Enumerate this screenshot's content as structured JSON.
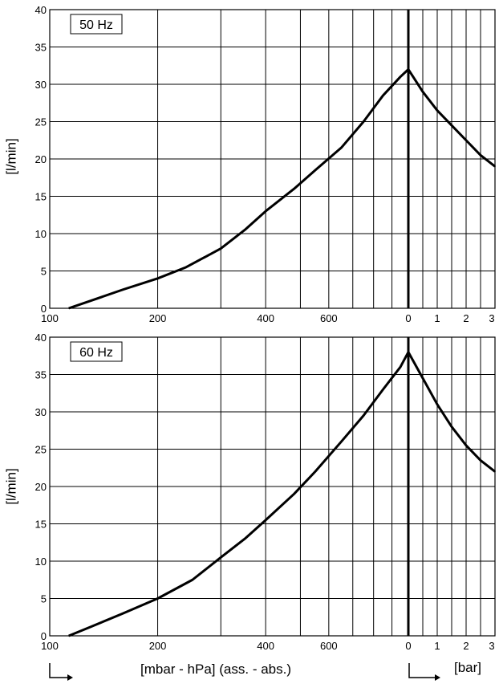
{
  "chart_data": [
    {
      "type": "line",
      "title": "50 Hz",
      "ylabel": "[l/min]",
      "ylim": [
        0,
        40
      ],
      "yticks": [
        "0",
        "5",
        "10",
        "15",
        "20",
        "25",
        "30",
        "35",
        "40"
      ],
      "vacuum_axis": {
        "unit": "mbar",
        "scale": "log",
        "range": [
          100,
          1000
        ],
        "tick_labels": [
          {
            "value": 100,
            "label": "100"
          },
          {
            "value": 200,
            "label": "200"
          },
          {
            "value": 400,
            "label": "400"
          },
          {
            "value": 600,
            "label": "600"
          }
        ]
      },
      "pressure_axis": {
        "unit": "bar",
        "range": [
          0,
          3
        ],
        "tick_labels": [
          {
            "value": 0,
            "label": "0"
          },
          {
            "value": 1,
            "label": "1"
          },
          {
            "value": 2,
            "label": "2"
          },
          {
            "value": 3,
            "label": "3"
          }
        ]
      },
      "series": [
        {
          "vacuum_points": [
            [
              113,
              0
            ],
            [
              130,
              1
            ],
            [
              160,
              2.5
            ],
            [
              200,
              4
            ],
            [
              240,
              5.5
            ],
            [
              300,
              8
            ],
            [
              350,
              10.5
            ],
            [
              400,
              13
            ],
            [
              480,
              16
            ],
            [
              550,
              18.5
            ],
            [
              650,
              21.5
            ],
            [
              750,
              25
            ],
            [
              850,
              28.5
            ],
            [
              950,
              31
            ],
            [
              1000,
              32
            ]
          ],
          "pressure_points": [
            [
              0,
              32
            ],
            [
              0.5,
              29
            ],
            [
              1.0,
              26.5
            ],
            [
              1.5,
              24.5
            ],
            [
              2.0,
              22.5
            ],
            [
              2.5,
              20.5
            ],
            [
              3.0,
              19
            ]
          ]
        }
      ]
    },
    {
      "type": "line",
      "title": "60 Hz",
      "ylabel": "[l/min]",
      "ylim": [
        0,
        40
      ],
      "yticks": [
        "0",
        "5",
        "10",
        "15",
        "20",
        "25",
        "30",
        "35",
        "40"
      ],
      "vacuum_axis": {
        "unit": "mbar",
        "scale": "log",
        "range": [
          100,
          1000
        ],
        "tick_labels": [
          {
            "value": 100,
            "label": "100"
          },
          {
            "value": 200,
            "label": "200"
          },
          {
            "value": 400,
            "label": "400"
          },
          {
            "value": 600,
            "label": "600"
          }
        ]
      },
      "pressure_axis": {
        "unit": "bar",
        "range": [
          0,
          3
        ],
        "tick_labels": [
          {
            "value": 0,
            "label": "0"
          },
          {
            "value": 1,
            "label": "1"
          },
          {
            "value": 2,
            "label": "2"
          },
          {
            "value": 3,
            "label": "3"
          }
        ]
      },
      "series": [
        {
          "vacuum_points": [
            [
              113,
              0
            ],
            [
              130,
              1.2
            ],
            [
              160,
              3
            ],
            [
              200,
              5
            ],
            [
              250,
              7.5
            ],
            [
              300,
              10.5
            ],
            [
              350,
              13
            ],
            [
              400,
              15.5
            ],
            [
              480,
              19
            ],
            [
              550,
              22
            ],
            [
              650,
              26
            ],
            [
              750,
              29.5
            ],
            [
              850,
              33
            ],
            [
              950,
              36
            ],
            [
              1000,
              38
            ]
          ],
          "pressure_points": [
            [
              0,
              38
            ],
            [
              0.5,
              34.5
            ],
            [
              1.0,
              31
            ],
            [
              1.5,
              28
            ],
            [
              2.0,
              25.5
            ],
            [
              2.5,
              23.5
            ],
            [
              3.0,
              22
            ]
          ]
        }
      ]
    }
  ],
  "x_axis_vacuum_label": "[mbar - hPa] (ass. - abs.)",
  "x_axis_pressure_label": "[bar]"
}
